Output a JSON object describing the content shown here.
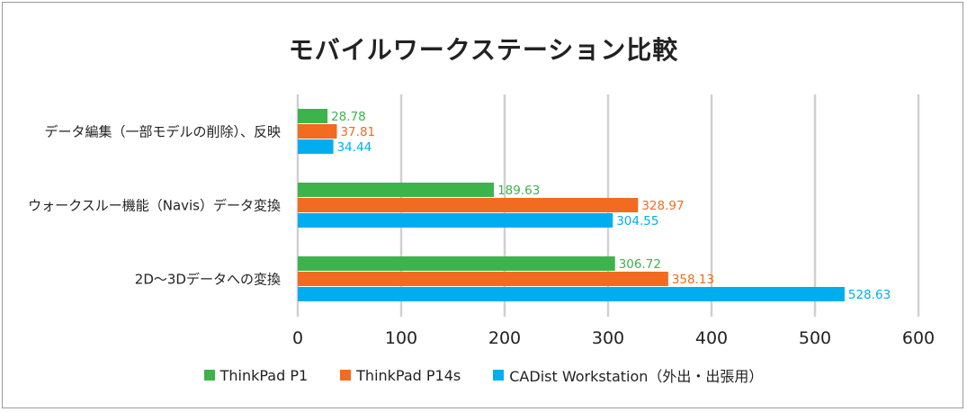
{
  "chart_data": {
    "type": "bar",
    "orientation": "horizontal",
    "title": "モバイルワークステーション比較",
    "categories": [
      "データ編集（一部モデルの削除）、反映",
      "ウォークスルー機能（Navis）データ変換",
      "2D〜3Dデータへの変換"
    ],
    "series": [
      {
        "name": "ThinkPad P1",
        "color": "#3cb44b",
        "values": [
          28.78,
          189.63,
          306.72
        ]
      },
      {
        "name": "ThinkPad P14s",
        "color": "#f26b21",
        "values": [
          37.81,
          328.97,
          358.13
        ]
      },
      {
        "name": "CADist Workstation（外出・出張用）",
        "color": "#00aeef",
        "values": [
          34.44,
          304.55,
          528.63
        ]
      }
    ],
    "value_labels": [
      [
        "28.78",
        "189.63",
        "306.72"
      ],
      [
        "37.81",
        "328.97",
        "358.13"
      ],
      [
        "34.44",
        "304.55",
        "528.63"
      ]
    ],
    "xlim": [
      0,
      600
    ],
    "xticks": [
      0,
      100,
      200,
      300,
      400,
      500,
      600
    ],
    "xtick_labels": [
      "0",
      "100",
      "200",
      "300",
      "400",
      "500",
      "600"
    ],
    "grid": "vertical",
    "legend": "bottom"
  }
}
